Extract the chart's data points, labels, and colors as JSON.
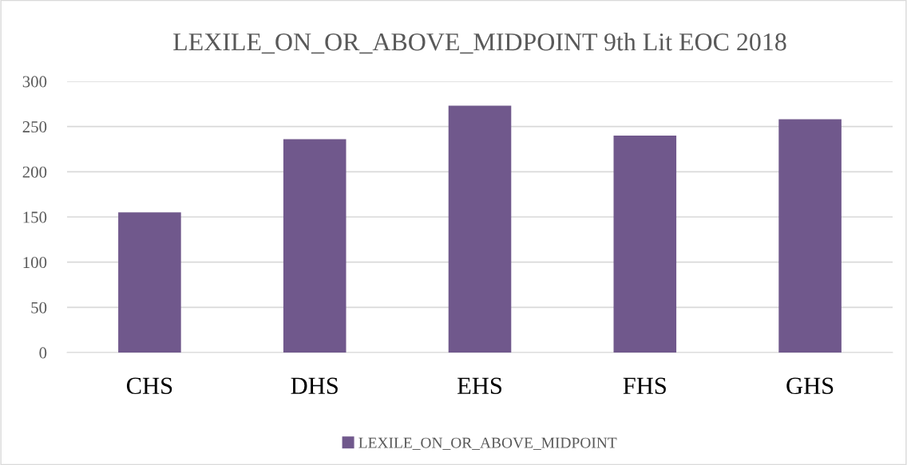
{
  "chart_data": {
    "type": "bar",
    "title": "LEXILE_ON_OR_ABOVE_MIDPOINT 9th Lit EOC 2018",
    "categories": [
      "CHS",
      "DHS",
      "EHS",
      "FHS",
      "GHS"
    ],
    "series": [
      {
        "name": "LEXILE_ON_OR_ABOVE_MIDPOINT",
        "color": "#70588c",
        "values": [
          155,
          236,
          273,
          240,
          258
        ]
      }
    ],
    "ylim": [
      0,
      300
    ],
    "yticks": [
      0,
      50,
      100,
      150,
      200,
      250,
      300
    ],
    "grid": "y",
    "legend": "bottom"
  }
}
